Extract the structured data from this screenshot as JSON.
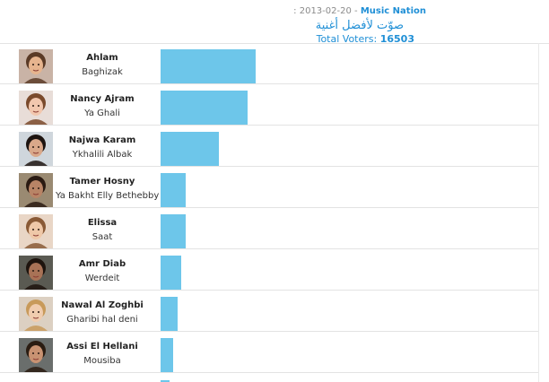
{
  "header": {
    "date": "2013-02-20",
    "separator": " : ",
    "dash": " - ",
    "site": "Music Nation",
    "arabic_title": "صوّت لأفضل أغنية",
    "total_label": "Total Voters: ",
    "total_value": "16503"
  },
  "colors": {
    "bar": "#6dc6ea",
    "accent": "#1f8fd6"
  },
  "rows": [
    {
      "artist": "Ahlam",
      "song": "Baghizak",
      "share": 1.0,
      "avatar_icon": "singer-photo-icon",
      "tone": "#e6b48e",
      "hair": "#5a3a26",
      "bg": "#c9b3a6"
    },
    {
      "artist": "Nancy Ajram",
      "song": "Ya Ghali",
      "share": 0.915,
      "avatar_icon": "singer-photo-icon",
      "tone": "#f2c7ae",
      "hair": "#7a4a2c",
      "bg": "#e8ddd8"
    },
    {
      "artist": "Najwa Karam",
      "song": "Ykhalili Albak",
      "share": 0.61,
      "avatar_icon": "singer-photo-icon",
      "tone": "#d9a88a",
      "hair": "#1d1410",
      "bg": "#cfd6dc"
    },
    {
      "artist": "Tamer Hosny",
      "song": "Ya Bakht Elly Bethebby",
      "share": 0.265,
      "avatar_icon": "singer-photo-icon",
      "tone": "#b88466",
      "hair": "#2a1a12",
      "bg": "#9a8a72"
    },
    {
      "artist": "Elissa",
      "song": "Saat",
      "share": 0.265,
      "avatar_icon": "singer-photo-icon",
      "tone": "#efc8a8",
      "hair": "#8a5a36",
      "bg": "#e9d6c6"
    },
    {
      "artist": "Amr Diab",
      "song": "Werdeit",
      "share": 0.22,
      "avatar_icon": "singer-photo-icon",
      "tone": "#a87256",
      "hair": "#1e140e",
      "bg": "#5a5a52"
    },
    {
      "artist": "Nawal Al Zoghbi",
      "song": "Gharibi hal deni",
      "share": 0.18,
      "avatar_icon": "singer-photo-icon",
      "tone": "#f0ccae",
      "hair": "#c89a5a",
      "bg": "#dcd0c2"
    },
    {
      "artist": "Assi El Hellani",
      "song": "Mousiba",
      "share": 0.135,
      "avatar_icon": "singer-photo-icon",
      "tone": "#c89272",
      "hair": "#2a1c12",
      "bg": "#6a6e6c"
    }
  ]
}
